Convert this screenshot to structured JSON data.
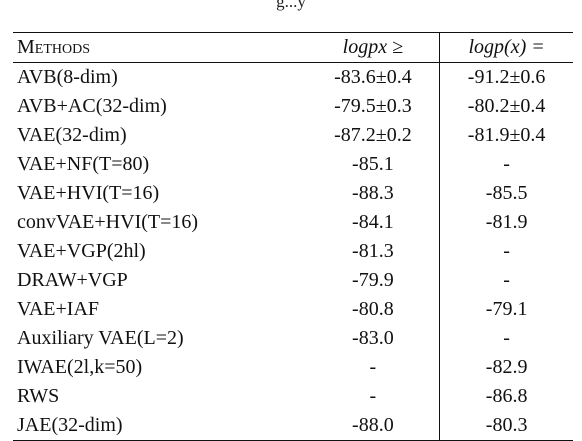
{
  "caption_fragment": "g...y",
  "table": {
    "headers": {
      "method": "Methods",
      "lower_bound": "logpx ≥",
      "log_likelihood": "logp(x) ="
    },
    "rows": [
      {
        "method": "AVB(8-dim)",
        "lower_bound": "-83.6±0.4",
        "log_likelihood": "-91.2±0.6"
      },
      {
        "method": "AVB+AC(32-dim)",
        "lower_bound": "-79.5±0.3",
        "log_likelihood": "-80.2±0.4"
      },
      {
        "method": "VAE(32-dim)",
        "lower_bound": "-87.2±0.2",
        "log_likelihood": "-81.9±0.4"
      },
      {
        "method": "VAE+NF(T=80)",
        "lower_bound": "-85.1",
        "log_likelihood": "-"
      },
      {
        "method": "VAE+HVI(T=16)",
        "lower_bound": "-88.3",
        "log_likelihood": "-85.5"
      },
      {
        "method": "convVAE+HVI(T=16)",
        "lower_bound": "-84.1",
        "log_likelihood": "-81.9"
      },
      {
        "method": "VAE+VGP(2hl)",
        "lower_bound": "-81.3",
        "log_likelihood": "-"
      },
      {
        "method": "DRAW+VGP",
        "lower_bound": "-79.9",
        "log_likelihood": "-"
      },
      {
        "method": "VAE+IAF",
        "lower_bound": "-80.8",
        "log_likelihood": "-79.1"
      },
      {
        "method": "Auxiliary VAE(L=2)",
        "lower_bound": "-83.0",
        "log_likelihood": "-"
      },
      {
        "method": "IWAE(2l,k=50)",
        "lower_bound": "-",
        "log_likelihood": "-82.9"
      },
      {
        "method": "RWS",
        "lower_bound": "-",
        "log_likelihood": "-86.8"
      },
      {
        "method": "JAE(32-dim)",
        "lower_bound": "-88.0",
        "log_likelihood": "-80.3"
      }
    ]
  }
}
